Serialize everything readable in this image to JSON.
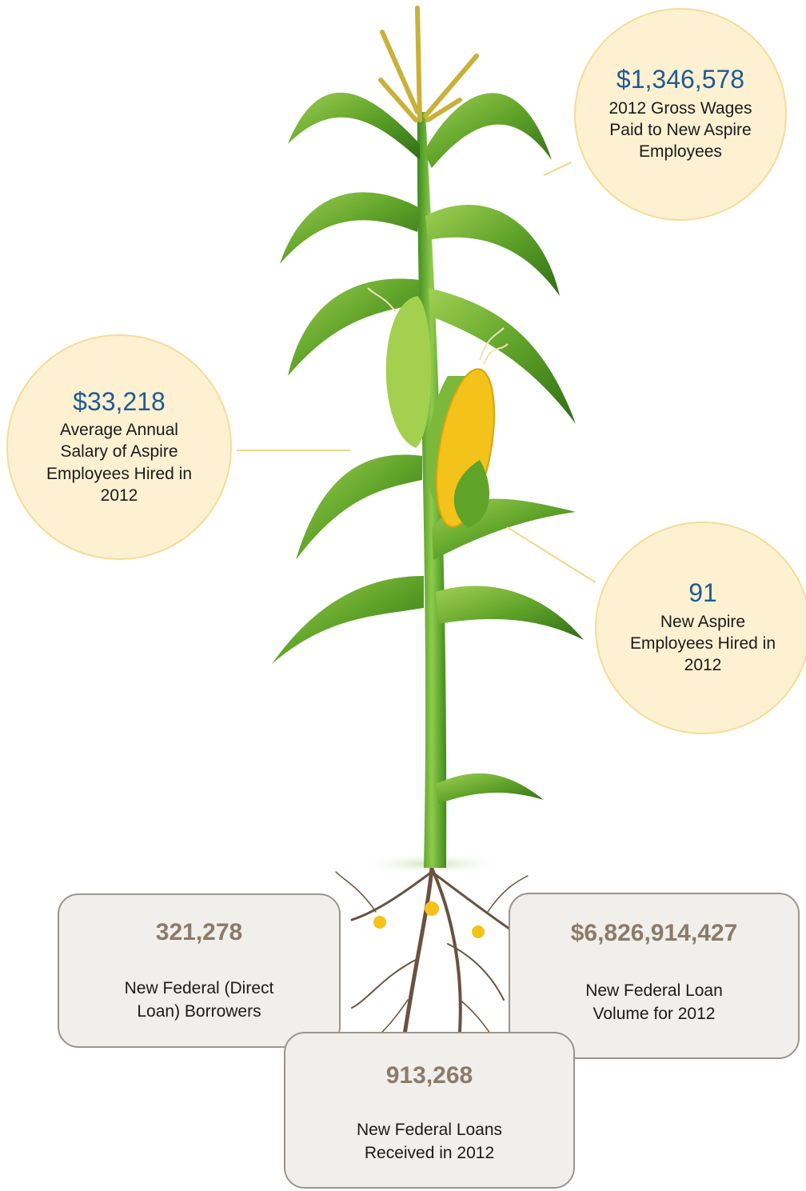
{
  "stats": {
    "gross_wages": {
      "value": "$1,346,578",
      "line1": "2012 Gross Wages",
      "line2": "Paid to New Aspire",
      "line3": "Employees"
    },
    "avg_salary": {
      "value": "$33,218",
      "line1": "Average Annual",
      "line2": "Salary of Aspire",
      "line3": "Employees Hired in",
      "line4": "2012"
    },
    "hired": {
      "value": "91",
      "line1": "New Aspire",
      "line2": "Employees Hired in",
      "line3": "2012"
    }
  },
  "roots": {
    "borrowers": {
      "value": "321,278",
      "line1": "New Federal (Direct",
      "line2": "Loan) Borrowers"
    },
    "loan_volume": {
      "value": "$6,826,914,427",
      "line1": "New Federal Loan",
      "line2": "Volume for 2012"
    },
    "loans": {
      "value": "913,268",
      "line1": "New Federal Loans",
      "line2": "Received in 2012"
    }
  },
  "colors": {
    "bubble_fill": "#fdf1d2",
    "accent_blue": "#1f5b94",
    "box_number": "#8b7b68",
    "leaf": "#5fa329",
    "corn": "#f3c21b"
  }
}
